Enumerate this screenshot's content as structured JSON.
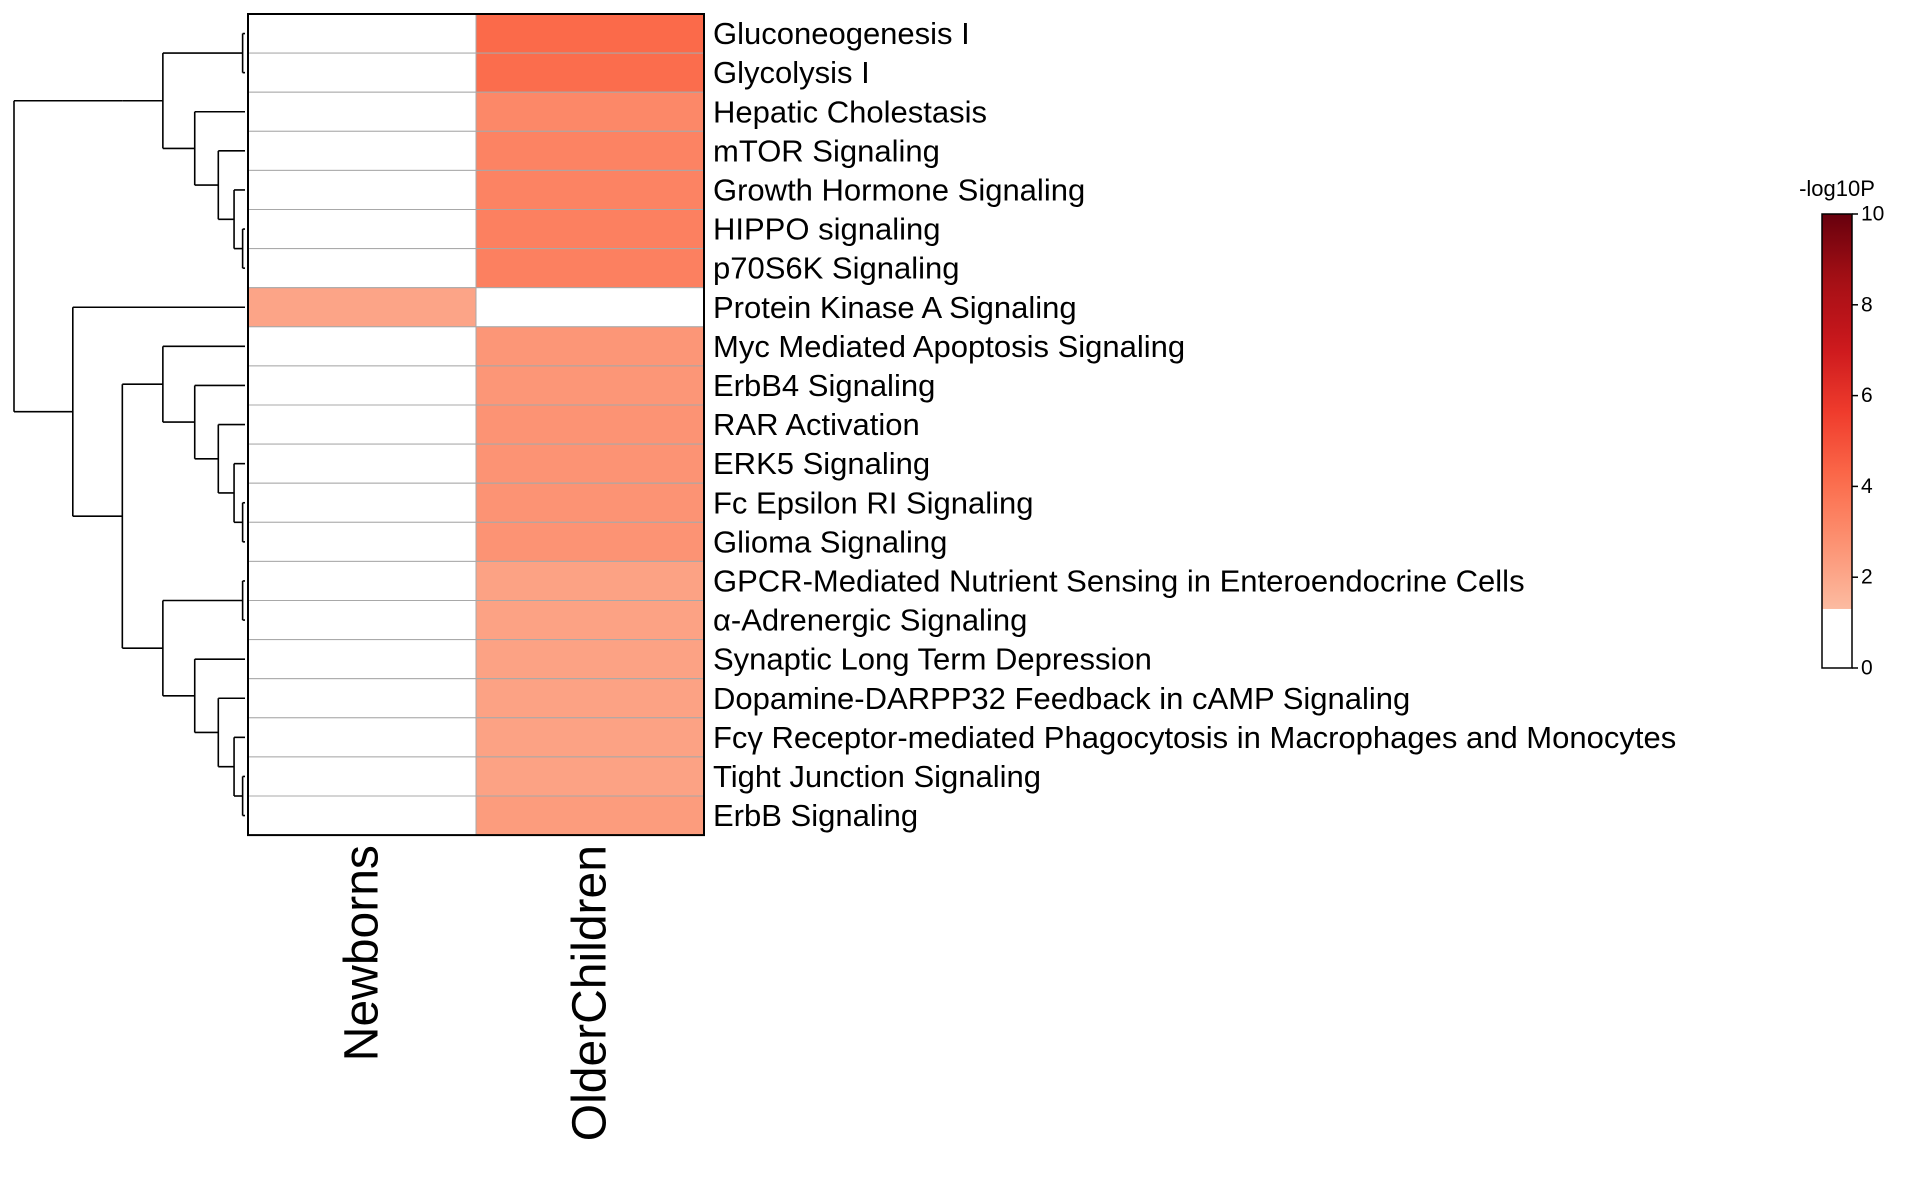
{
  "chart_data": {
    "type": "heatmap",
    "columns": [
      "Newborns",
      "OlderChildren"
    ],
    "rows": [
      "Gluconeogenesis I",
      "Glycolysis I",
      "Hepatic Cholestasis",
      "mTOR Signaling",
      "Growth Hormone Signaling",
      "HIPPO signaling",
      "p70S6K Signaling",
      "Protein Kinase A Signaling",
      "Myc Mediated Apoptosis Signaling",
      "ErbB4 Signaling",
      "RAR Activation",
      "ERK5 Signaling",
      "Fc Epsilon RI Signaling",
      "Glioma Signaling",
      "GPCR-Mediated Nutrient Sensing in Enteroendocrine Cells",
      "α-Adrenergic Signaling",
      "Synaptic Long Term Depression",
      "Dopamine-DARPP32 Feedback in cAMP Signaling",
      "Fcγ Receptor-mediated Phagocytosis in Macrophages and Monocytes",
      "Tight Junction Signaling",
      "ErbB Signaling"
    ],
    "values": [
      [
        0,
        4.2
      ],
      [
        0,
        4.1
      ],
      [
        0,
        3.1
      ],
      [
        0,
        3.3
      ],
      [
        0,
        3.3
      ],
      [
        0,
        3.4
      ],
      [
        0,
        3.4
      ],
      [
        2.1,
        0
      ],
      [
        0,
        2.6
      ],
      [
        0,
        2.6
      ],
      [
        0,
        2.7
      ],
      [
        0,
        2.7
      ],
      [
        0,
        2.7
      ],
      [
        0,
        2.7
      ],
      [
        0,
        2.2
      ],
      [
        0,
        2.2
      ],
      [
        0,
        2.2
      ],
      [
        0,
        2.2
      ],
      [
        0,
        2.2
      ],
      [
        0,
        2.2
      ],
      [
        0,
        2.4
      ]
    ],
    "legend": {
      "title": "-log10P",
      "range": [
        0,
        10
      ],
      "ticks": [
        0,
        2,
        4,
        6,
        8,
        10
      ],
      "threshold": 1.3,
      "colors": [
        "#ffffff",
        "#fcbba1",
        "#fc9272",
        "#fb6a4a",
        "#ef3b2c",
        "#cb181d",
        "#a50f15",
        "#67000d"
      ],
      "placement": "right"
    },
    "dendrogram": {
      "placement": "left",
      "tree": [
        [
          [
            [
              0,
              1
            ],
            [
              2,
              [
                3,
                [
                  4,
                  [
                    5,
                    6
                  ]
                ]
              ]
            ]
          ]
        ],
        [
          7,
          [
            [
              8,
              [
                9,
                [
                  10,
                  [
                    11,
                    [
                      12,
                      13
                    ]
                  ]
                ]
              ]
            ],
            [
              [
                14,
                15
              ],
              [
                16,
                [
                  17,
                  [
                    18,
                    [
                      19,
                      20
                    ]
                  ]
                ]
              ]
            ]
          ]
        ]
      ]
    }
  }
}
